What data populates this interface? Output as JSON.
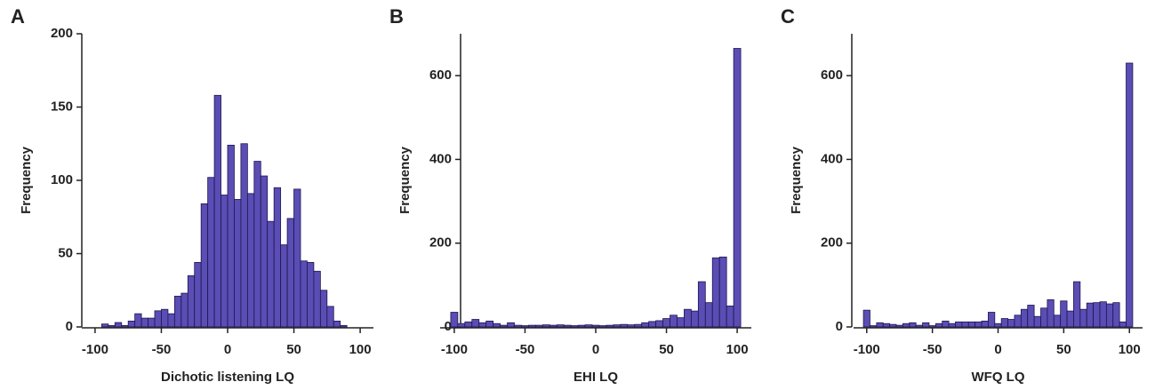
{
  "chart_data": [
    {
      "type": "histogram",
      "panel_label": "A",
      "xlabel": "Dichotic listening LQ",
      "ylabel": "Frequency",
      "color": "#5a4db4",
      "bins": [
        -100,
        -95,
        -90,
        -85,
        -80,
        -75,
        -70,
        -65,
        -60,
        -55,
        -50,
        -45,
        -40,
        -35,
        -30,
        -25,
        -20,
        -15,
        -10,
        -5,
        0,
        5,
        10,
        15,
        20,
        25,
        30,
        35,
        40,
        45,
        50,
        55,
        60,
        65,
        70,
        75,
        80,
        85,
        90,
        95,
        100
      ],
      "values": [
        0,
        2,
        1,
        3,
        1,
        4,
        9,
        6,
        6,
        11,
        12,
        9,
        21,
        23,
        35,
        44,
        84,
        102,
        158,
        90,
        124,
        87,
        125,
        91,
        113,
        103,
        72,
        95,
        56,
        74,
        94,
        45,
        44,
        38,
        25,
        14,
        4,
        1,
        0,
        0
      ],
      "xlim": [
        -110,
        110
      ],
      "ylim": [
        0,
        200
      ],
      "xticks": [
        -100,
        -50,
        0,
        50,
        100
      ],
      "yticks": [
        0,
        50,
        100,
        150,
        200
      ]
    },
    {
      "type": "histogram",
      "panel_label": "B",
      "xlabel": "EHI LQ",
      "ylabel": "Frequency",
      "color": "#5a4db4",
      "bins": [
        -102.5,
        -97.5,
        -92.5,
        -87.5,
        -82.5,
        -77.5,
        -72.5,
        -67.5,
        -62.5,
        -57.5,
        -52.5,
        -47.5,
        -42.5,
        -37.5,
        -32.5,
        -27.5,
        -22.5,
        -17.5,
        -12.5,
        -7.5,
        -2.5,
        2.5,
        7.5,
        12.5,
        17.5,
        22.5,
        27.5,
        32.5,
        37.5,
        42.5,
        47.5,
        52.5,
        57.5,
        62.5,
        67.5,
        72.5,
        77.5,
        82.5,
        87.5,
        92.5,
        97.5,
        102.5
      ],
      "values": [
        35,
        8,
        12,
        18,
        10,
        14,
        8,
        4,
        10,
        4,
        3,
        4,
        4,
        5,
        4,
        5,
        4,
        3,
        4,
        5,
        4,
        3,
        4,
        5,
        6,
        5,
        6,
        10,
        13,
        15,
        20,
        28,
        22,
        42,
        38,
        108,
        58,
        165,
        167,
        50,
        665
      ],
      "xlim": [
        -110,
        110
      ],
      "ylim": [
        0,
        700
      ],
      "xticks": [
        -100,
        -50,
        0,
        50,
        100
      ],
      "yticks": [
        0,
        200,
        400,
        600
      ]
    },
    {
      "type": "histogram",
      "panel_label": "C",
      "xlabel": "WFQ LQ",
      "ylabel": "Frequency",
      "color": "#5a4db4",
      "bins": [
        -102.5,
        -97.5,
        -92.5,
        -87.5,
        -82.5,
        -77.5,
        -72.5,
        -67.5,
        -62.5,
        -57.5,
        -52.5,
        -47.5,
        -42.5,
        -37.5,
        -32.5,
        -27.5,
        -22.5,
        -17.5,
        -12.5,
        -7.5,
        -2.5,
        2.5,
        7.5,
        12.5,
        17.5,
        22.5,
        27.5,
        32.5,
        37.5,
        42.5,
        47.5,
        52.5,
        57.5,
        62.5,
        67.5,
        72.5,
        77.5,
        82.5,
        87.5,
        92.5,
        97.5,
        102.5
      ],
      "values": [
        40,
        3,
        10,
        8,
        6,
        4,
        8,
        10,
        4,
        10,
        3,
        8,
        14,
        8,
        12,
        12,
        12,
        12,
        14,
        35,
        8,
        20,
        18,
        28,
        42,
        52,
        25,
        45,
        65,
        28,
        62,
        38,
        108,
        42,
        57,
        58,
        60,
        55,
        58,
        12,
        630
      ],
      "xlim": [
        -110,
        110
      ],
      "ylim": [
        0,
        700
      ],
      "xticks": [
        -100,
        -50,
        0,
        50,
        100
      ],
      "yticks": [
        0,
        200,
        400,
        600
      ]
    }
  ]
}
